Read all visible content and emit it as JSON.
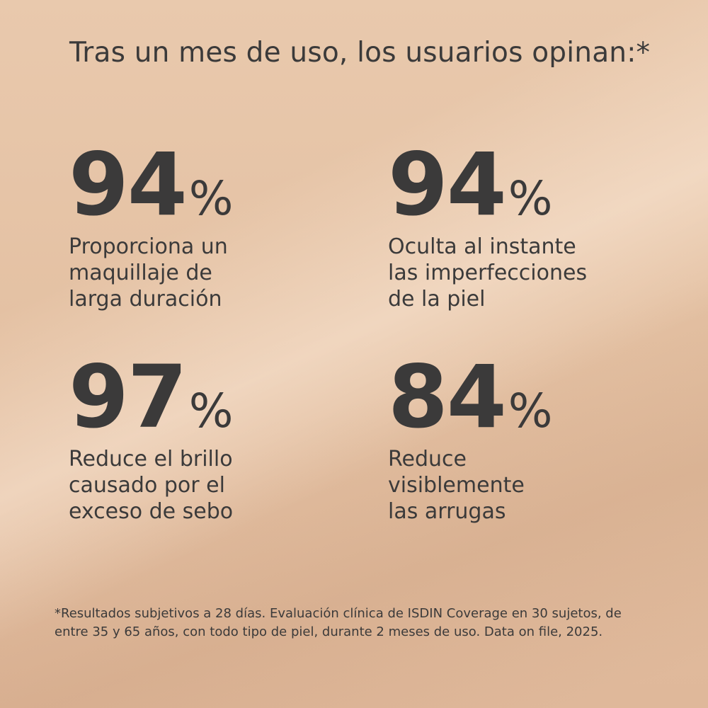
{
  "title": "Tras un mes de uso, los usuarios opinan:*",
  "stats": [
    {
      "value": 94,
      "unit": "%",
      "lines": [
        "Proporciona un",
        "maquillaje de",
        "larga duración"
      ]
    },
    {
      "value": 94,
      "unit": "%",
      "lines": [
        "Oculta al instante",
        "las imperfecciones",
        "de la piel"
      ]
    },
    {
      "value": 97,
      "unit": "%",
      "lines": [
        "Reduce el brillo",
        "causado por el",
        "exceso de sebo"
      ]
    },
    {
      "value": 84,
      "unit": "%",
      "lines": [
        "Reduce",
        "visiblemente",
        "las arrugas"
      ]
    }
  ],
  "footnote": [
    "*Resultados subjetivos a 28 días. Evaluación clínica de ISDIN Coverage en 30 sujetos, de",
    "entre 35 y 65 años, con todo tipo de piel, durante 2 meses de uso. Data on file, 2025."
  ]
}
